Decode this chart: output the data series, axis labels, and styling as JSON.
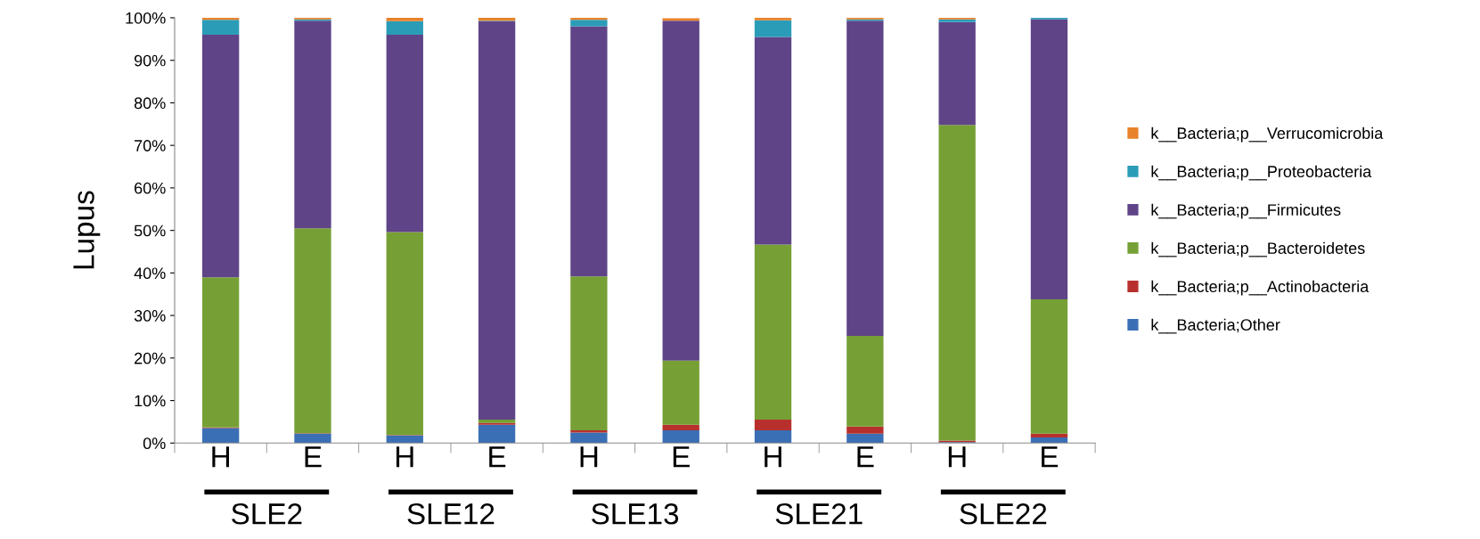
{
  "chart_data": {
    "type": "bar",
    "stacked": true,
    "ylabel": "Lupus",
    "categories": [
      "H",
      "E",
      "H",
      "E",
      "H",
      "E",
      "H",
      "E",
      "H",
      "E"
    ],
    "series": [
      {
        "name": "k__Bacteria;Other",
        "color": "#3a6fb5",
        "values": [
          3.5,
          2.2,
          1.8,
          4.3,
          2.5,
          3.0,
          3.0,
          2.2,
          0.2,
          1.3
        ]
      },
      {
        "name": "k__Bacteria;p__Actinobacteria",
        "color": "#b8302d",
        "values": [
          0.2,
          0.1,
          0.1,
          0.4,
          0.5,
          1.3,
          2.5,
          1.7,
          0.4,
          0.9
        ]
      },
      {
        "name": "k__Bacteria;p__Bacteroidetes",
        "color": "#76a035",
        "values": [
          35.3,
          48.2,
          47.7,
          0.8,
          36.2,
          15.1,
          41.2,
          21.3,
          74.2,
          31.6
        ]
      },
      {
        "name": "k__Bacteria;p__Firmicutes",
        "color": "#5f4488",
        "values": [
          57.0,
          48.8,
          46.4,
          93.7,
          58.8,
          79.9,
          48.8,
          74.1,
          24.2,
          65.8
        ]
      },
      {
        "name": "k__Bacteria;p__Proteobacteria",
        "color": "#2b9cb8",
        "values": [
          3.5,
          0.3,
          3.2,
          0.1,
          1.5,
          null,
          3.9,
          0.3,
          0.6,
          0.4
        ]
      },
      {
        "name": "k__Bacteria;p__Verrucomicrobia",
        "color": "#e8822a",
        "values": [
          0.5,
          0.4,
          0.8,
          0.7,
          0.5,
          0.6,
          0.6,
          0.4,
          0.4,
          0.0
        ]
      }
    ],
    "ylim": [
      0,
      100
    ],
    "yticks": [
      {
        "value": 0,
        "label": "0%"
      },
      {
        "value": 10,
        "label": "10%"
      },
      {
        "value": 20,
        "label": "20%"
      },
      {
        "value": 30,
        "label": "30%"
      },
      {
        "value": 40,
        "label": "40%"
      },
      {
        "value": 50,
        "label": "50%"
      },
      {
        "value": 60,
        "label": "60%"
      },
      {
        "value": 70,
        "label": "70%"
      },
      {
        "value": 80,
        "label": "80%"
      },
      {
        "value": 90,
        "label": "90%"
      },
      {
        "value": 100,
        "label": "100%"
      }
    ],
    "annotations": [
      "SLE2",
      "SLE12",
      "SLE13",
      "SLE21",
      "SLE22"
    ],
    "legend": "right",
    "grid": false
  }
}
